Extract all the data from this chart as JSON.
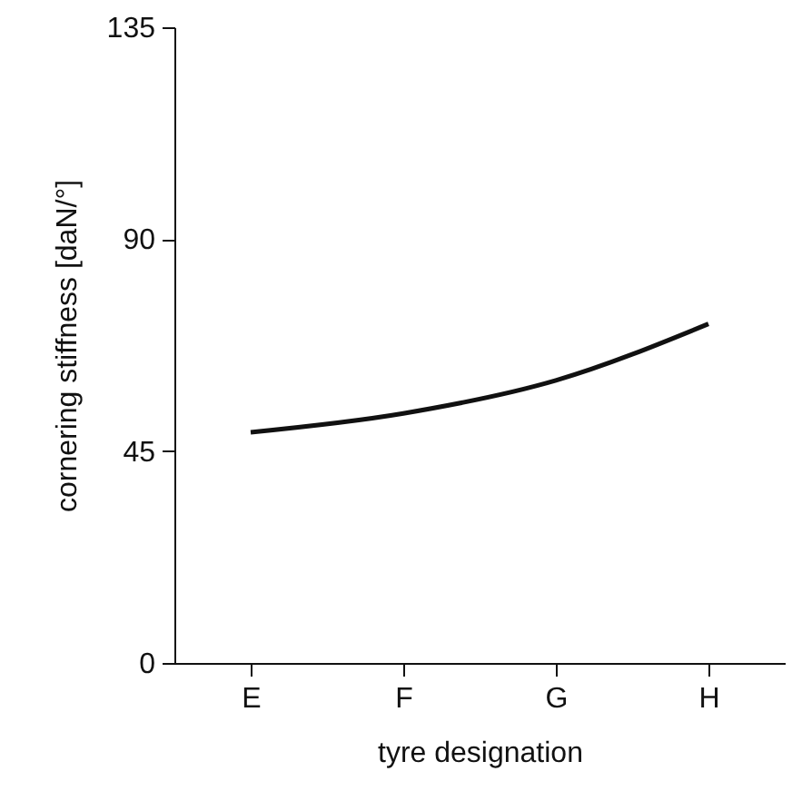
{
  "chart_data": {
    "type": "line",
    "xlabel": "tyre designation",
    "ylabel": "cornering stiffness [daN/°]",
    "categories": [
      "E",
      "F",
      "G",
      "H"
    ],
    "series": [
      {
        "color": "#111111",
        "values": [
          49,
          53,
          60,
          72
        ]
      }
    ],
    "ylim": [
      0,
      135
    ],
    "yticks": [
      0,
      45,
      90,
      135
    ],
    "grid": false,
    "marker": "none",
    "line_style": "solid"
  }
}
